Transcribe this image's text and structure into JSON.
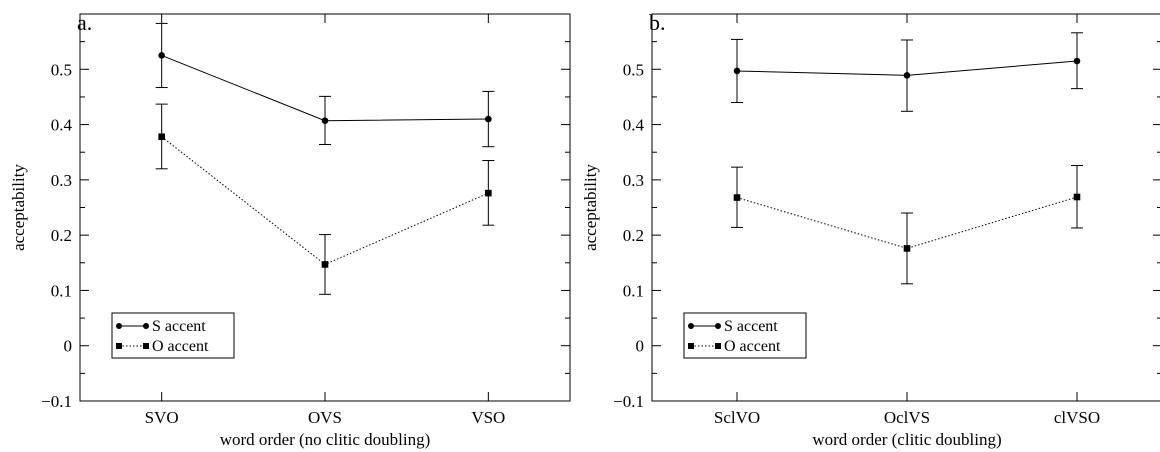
{
  "chart_data": [
    {
      "type": "line",
      "panel_label": "a.",
      "xlabel": "word order (no clitic doubling)",
      "ylabel": "acceptability",
      "categories": [
        "SVO",
        "OVS",
        "VSO"
      ],
      "ylim": [
        -0.1,
        0.6
      ],
      "yticks": [
        "−0.1",
        "0",
        "0.1",
        "0.2",
        "0.3",
        "0.4",
        "0.5"
      ],
      "ytick_values": [
        -0.1,
        0,
        0.1,
        0.2,
        0.3,
        0.4,
        0.5
      ],
      "legend_position": "bottom-left",
      "series": [
        {
          "name": "S accent",
          "marker": "circle",
          "line": "solid",
          "values": [
            0.525,
            0.407,
            0.41
          ],
          "err_low": [
            0.467,
            0.364,
            0.36
          ],
          "err_high": [
            0.583,
            0.451,
            0.46
          ]
        },
        {
          "name": "O accent",
          "marker": "square",
          "line": "dotted",
          "values": [
            0.378,
            0.147,
            0.276
          ],
          "err_low": [
            0.32,
            0.093,
            0.218
          ],
          "err_high": [
            0.437,
            0.201,
            0.335
          ]
        }
      ]
    },
    {
      "type": "line",
      "panel_label": "b.",
      "xlabel": "word order (clitic doubling)",
      "ylabel": "acceptability",
      "categories": [
        "SclVO",
        "OclVS",
        "clVSO"
      ],
      "ylim": [
        -0.1,
        0.6
      ],
      "yticks": [
        "−0.1",
        "0",
        "0.1",
        "0.2",
        "0.3",
        "0.4",
        "0.5"
      ],
      "ytick_values": [
        -0.1,
        0,
        0.1,
        0.2,
        0.3,
        0.4,
        0.5
      ],
      "legend_position": "bottom-left",
      "series": [
        {
          "name": "S accent",
          "marker": "circle",
          "line": "solid",
          "values": [
            0.497,
            0.489,
            0.515
          ],
          "err_low": [
            0.44,
            0.424,
            0.465
          ],
          "err_high": [
            0.554,
            0.553,
            0.566
          ]
        },
        {
          "name": "O accent",
          "marker": "square",
          "line": "dotted",
          "values": [
            0.268,
            0.176,
            0.269
          ],
          "err_low": [
            0.214,
            0.112,
            0.213
          ],
          "err_high": [
            0.323,
            0.24,
            0.326
          ]
        }
      ]
    }
  ]
}
